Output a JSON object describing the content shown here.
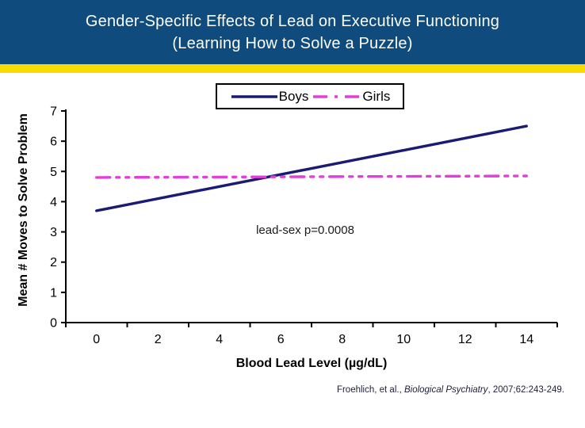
{
  "title": {
    "line1": "Gender-Specific Effects of Lead on Executive Functioning",
    "line2": "(Learning How to Solve a Puzzle)"
  },
  "colors": {
    "header_bg": "#0f4b7d",
    "accent_bar": "#f8db00",
    "axis": "#000000",
    "boys_line": "#1b1b75",
    "girls_line": "#e03fd8"
  },
  "chart_data": {
    "type": "line",
    "title": "",
    "xlabel": "Blood Lead Level (µg/dL)",
    "ylabel": "Mean # Moves to Solve Problem",
    "categories": [
      0,
      2,
      4,
      6,
      8,
      10,
      12,
      14
    ],
    "yticks": [
      0,
      1,
      2,
      3,
      4,
      5,
      6,
      7
    ],
    "ylim": [
      0,
      7
    ],
    "grid": "off",
    "legend_position": "top-center",
    "annotation": "lead-sex p=0.0008",
    "series": [
      {
        "name": "Boys",
        "color": "#1b1b75",
        "style": "solid",
        "x": [
          0,
          14
        ],
        "values": [
          3.7,
          6.5
        ]
      },
      {
        "name": "Girls",
        "color": "#e03fd8",
        "style": "dash-dot-dot",
        "x": [
          0,
          14
        ],
        "values": [
          4.8,
          4.85
        ]
      }
    ]
  },
  "citation": {
    "prefix": "Froehlich,  et al., ",
    "journal": "Biological Psychiatry",
    "suffix": ", 2007;62:243-249."
  }
}
